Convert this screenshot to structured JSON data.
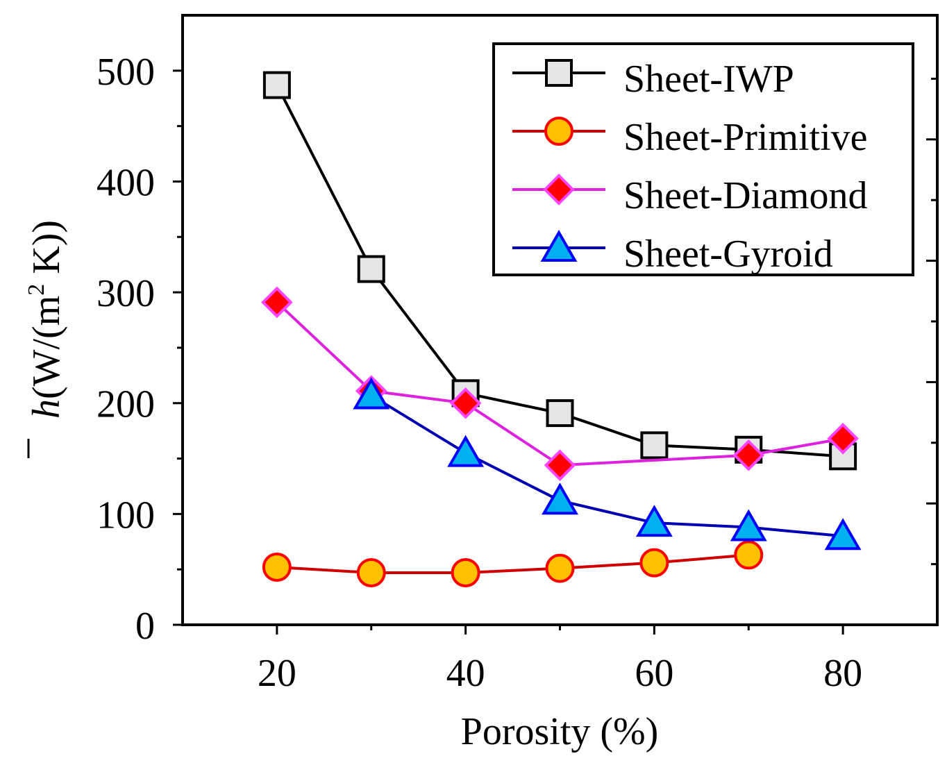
{
  "chart_data": {
    "type": "line",
    "xlabel": "Porosity (%)",
    "ylabel": "h(W/(m² K))",
    "ylabel_parts": {
      "symbol": "h",
      "open": "(W/(m",
      "sup": "2",
      "close": " K))"
    },
    "xlim": [
      10,
      90
    ],
    "ylim": [
      0,
      550
    ],
    "xticks": [
      20,
      40,
      60,
      80
    ],
    "yticks": [
      0,
      100,
      200,
      300,
      400,
      500
    ],
    "xtick_labels": [
      "20",
      "40",
      "60",
      "80"
    ],
    "ytick_labels": [
      "0",
      "100",
      "200",
      "300",
      "400",
      "500"
    ],
    "grid": false,
    "legend_position": "top-right",
    "series": [
      {
        "name": "Sheet-IWP",
        "marker": "square",
        "line_color": "#000000",
        "fill": "#e6e6e6",
        "edge": "#000000",
        "x": [
          20,
          30,
          40,
          50,
          60,
          70,
          80
        ],
        "y": [
          487,
          321,
          209,
          191,
          162,
          158,
          152
        ]
      },
      {
        "name": "Sheet-Primitive",
        "marker": "circle",
        "line_color": "#d00000",
        "fill": "#ffc000",
        "edge": "#ff0000",
        "x": [
          20,
          30,
          40,
          50,
          60,
          70
        ],
        "y": [
          52,
          47,
          47,
          51,
          56,
          63
        ]
      },
      {
        "name": "Sheet-Diamond",
        "marker": "diamond",
        "line_color": "#dd22dd",
        "fill": "#ff0000",
        "edge": "#ff44ff",
        "x": [
          20,
          30,
          40,
          50,
          70,
          80
        ],
        "y": [
          291,
          211,
          200,
          144,
          153,
          168
        ]
      },
      {
        "name": "Sheet-Gyroid",
        "marker": "triangle",
        "line_color": "#0000b0",
        "fill": "#00b0f0",
        "edge": "#0000ff",
        "x": [
          30,
          40,
          50,
          60,
          70,
          80
        ],
        "y": [
          207,
          155,
          112,
          92,
          88,
          80
        ]
      }
    ]
  }
}
